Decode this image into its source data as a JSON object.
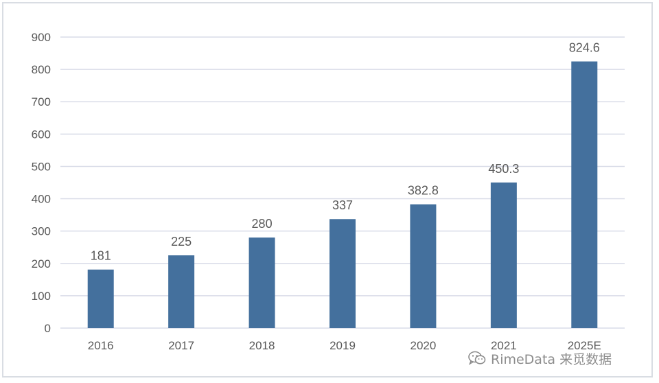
{
  "chart_data": {
    "type": "bar",
    "categories": [
      "2016",
      "2017",
      "2018",
      "2019",
      "2020",
      "2021",
      "2025E"
    ],
    "values": [
      181,
      225,
      280,
      337,
      382.8,
      450.3,
      824.6
    ],
    "data_labels": [
      "181",
      "225",
      "280",
      "337",
      "382.8",
      "450.3",
      "824.6"
    ],
    "title": "",
    "xlabel": "",
    "ylabel": "",
    "ylim": [
      0,
      900
    ],
    "yticks": [
      0,
      100,
      200,
      300,
      400,
      500,
      600,
      700,
      800,
      900
    ],
    "grid": true,
    "legend": "none",
    "bar_color": "#44709d",
    "grid_color": "#d9dce8"
  },
  "watermark": {
    "text": "RimeData 来觅数据",
    "icon": "wechat-icon"
  }
}
